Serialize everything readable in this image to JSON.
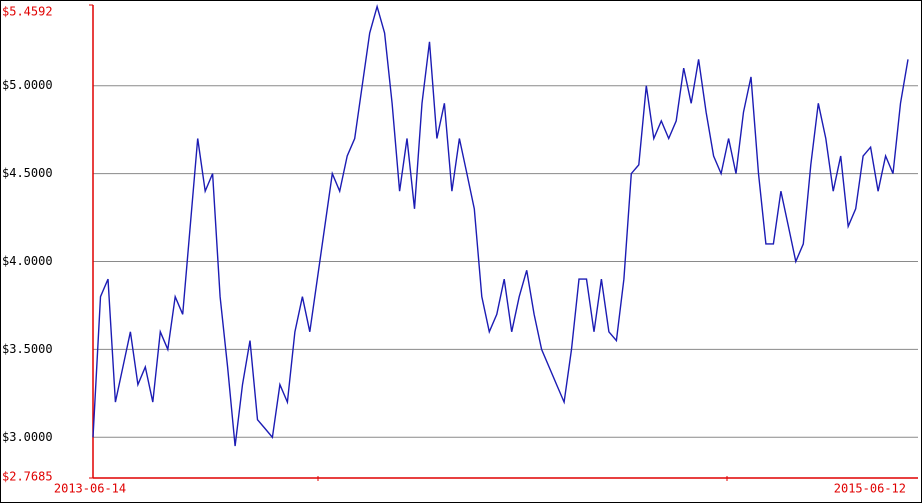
{
  "chart_data": {
    "type": "line",
    "categories": [
      "2013-06-14",
      null,
      null,
      null,
      null,
      null,
      null,
      null,
      null,
      null,
      null,
      null,
      null,
      null,
      null,
      null,
      null,
      null,
      null,
      null,
      null,
      null,
      null,
      null,
      null,
      null,
      null,
      null,
      null,
      null,
      null,
      null,
      null,
      null,
      null,
      null,
      null,
      null,
      null,
      null,
      null,
      null,
      null,
      null,
      null,
      null,
      null,
      null,
      null,
      null,
      null,
      null,
      null,
      null,
      null,
      null,
      null,
      null,
      null,
      null,
      null,
      null,
      null,
      null,
      null,
      null,
      null,
      null,
      null,
      null,
      null,
      null,
      null,
      null,
      null,
      null,
      null,
      null,
      null,
      null,
      null,
      null,
      null,
      null,
      null,
      null,
      null,
      null,
      null,
      null,
      null,
      null,
      null,
      null,
      null,
      null,
      null,
      null,
      null,
      null,
      null,
      null,
      null,
      null,
      null,
      null,
      null,
      null,
      null,
      "2015-06-12"
    ],
    "values": [
      3.0,
      3.8,
      3.9,
      3.2,
      3.4,
      3.6,
      3.3,
      3.4,
      3.2,
      3.6,
      3.5,
      3.8,
      3.7,
      4.2,
      4.7,
      4.4,
      4.5,
      3.8,
      3.4,
      2.95,
      3.3,
      3.55,
      3.1,
      3.05,
      3.0,
      3.3,
      3.2,
      3.6,
      3.8,
      3.6,
      3.9,
      4.2,
      4.5,
      4.4,
      4.6,
      4.7,
      5.0,
      5.3,
      5.45,
      5.3,
      4.9,
      4.4,
      4.7,
      4.3,
      4.9,
      5.25,
      4.7,
      4.9,
      4.4,
      4.7,
      4.5,
      4.3,
      3.8,
      3.6,
      3.7,
      3.9,
      3.6,
      3.8,
      3.95,
      3.7,
      3.5,
      3.4,
      3.3,
      3.2,
      3.5,
      3.9,
      3.9,
      3.6,
      3.9,
      3.6,
      3.55,
      3.9,
      4.5,
      4.55,
      5.0,
      4.7,
      4.8,
      4.7,
      4.8,
      5.1,
      4.9,
      5.15,
      4.85,
      4.6,
      4.5,
      4.7,
      4.5,
      4.85,
      5.05,
      4.5,
      4.1,
      4.1,
      4.4,
      4.2,
      4.0,
      4.1,
      4.55,
      4.9,
      4.7,
      4.4,
      4.6,
      4.2,
      4.3,
      4.6,
      4.65,
      4.4,
      4.6,
      4.5,
      4.9,
      5.15
    ],
    "color": "#1c1cb4",
    "axis_color": "#e00000",
    "ylim": [
      2.7685,
      5.4592
    ],
    "yticks": [
      {
        "value": 2.7685,
        "label": "$2.7685"
      },
      {
        "value": 3.0,
        "label": "$3.0000"
      },
      {
        "value": 3.5,
        "label": "$3.5000"
      },
      {
        "value": 4.0,
        "label": "$4.0000"
      },
      {
        "value": 4.5,
        "label": "$4.5000"
      },
      {
        "value": 5.0,
        "label": "$5.0000"
      },
      {
        "value": 5.4592,
        "label": "$5.4592"
      }
    ],
    "grid": true
  }
}
